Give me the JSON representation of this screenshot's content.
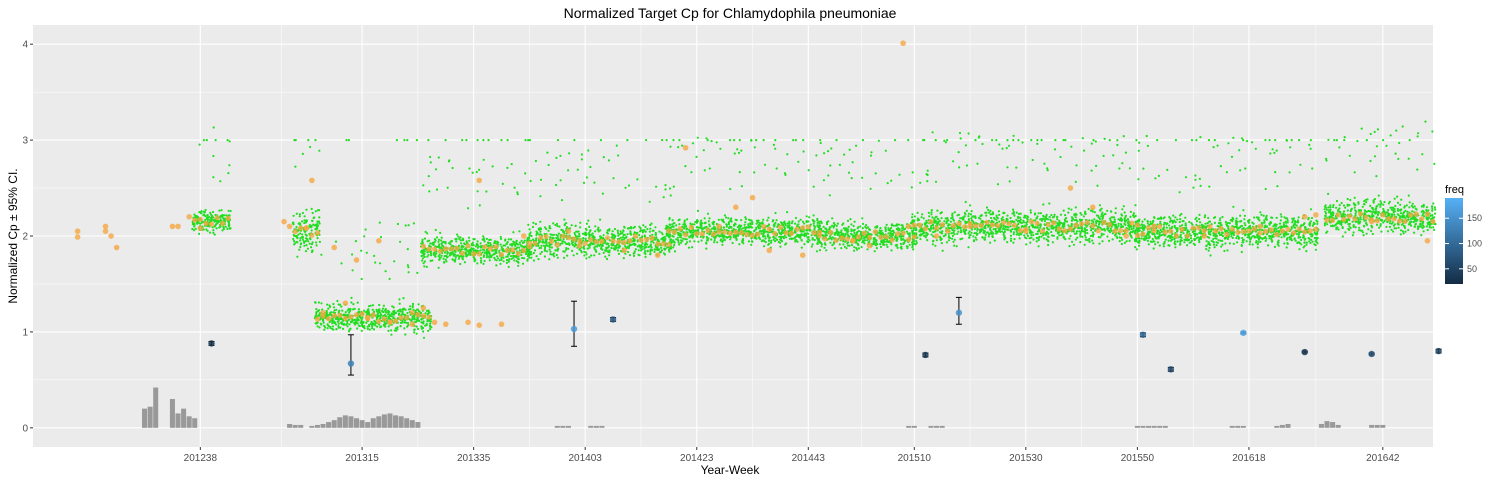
{
  "chart_data": {
    "type": "scatter",
    "title": "Normalized Target Cp for Chlamydophila pneumoniae",
    "xlabel": "Year-Week",
    "ylabel": "Normalized Cp ± 95% CI.",
    "ylim": [
      -0.2,
      4.2
    ],
    "xlim": [
      201208,
      201651
    ],
    "x_ticks": [
      "201238",
      "201315",
      "201335",
      "201403",
      "201423",
      "201443",
      "201510",
      "201530",
      "201550",
      "201618",
      "201642"
    ],
    "y_ticks": [
      0,
      1,
      2,
      3,
      4
    ],
    "grid": true,
    "colors": {
      "panel": "#ebebeb",
      "grid": "#ffffff",
      "green_points": "#22dd22",
      "orange_points": "#f5a742",
      "bars": "#999999",
      "error_bars": "#000000",
      "legend_low": "#132b43",
      "legend_high": "#56b1f7"
    },
    "green_segments": [
      {
        "x0": 201237,
        "x1": 201243,
        "mean": 2.15,
        "spread": 0.08
      },
      {
        "x0": 201303,
        "x1": 201307,
        "mean": 2.05,
        "spread": 0.15
      },
      {
        "x0": 201307,
        "x1": 201327,
        "mean": 1.15,
        "spread": 0.1
      },
      {
        "x0": 201326,
        "x1": 201345,
        "mean": 1.85,
        "spread": 0.1
      },
      {
        "x0": 201345,
        "x1": 201418,
        "mean": 1.95,
        "spread": 0.12
      },
      {
        "x0": 201418,
        "x1": 201445,
        "mean": 2.05,
        "spread": 0.1
      },
      {
        "x0": 201445,
        "x1": 201510,
        "mean": 2.0,
        "spread": 0.1
      },
      {
        "x0": 201510,
        "x1": 201550,
        "mean": 2.1,
        "spread": 0.12
      },
      {
        "x0": 201550,
        "x1": 201630,
        "mean": 2.05,
        "spread": 0.12
      },
      {
        "x0": 201632,
        "x1": 201651,
        "mean": 2.2,
        "spread": 0.12
      }
    ],
    "orange_points": [
      {
        "x": 201216,
        "y": 2.05
      },
      {
        "x": 201216,
        "y": 1.99
      },
      {
        "x": 201221,
        "y": 2.1
      },
      {
        "x": 201221,
        "y": 2.05
      },
      {
        "x": 201222,
        "y": 2.0
      },
      {
        "x": 201223,
        "y": 1.88
      },
      {
        "x": 201236,
        "y": 2.2
      },
      {
        "x": 201234,
        "y": 2.1
      },
      {
        "x": 201233,
        "y": 2.1
      },
      {
        "x": 201238,
        "y": 2.08
      },
      {
        "x": 201301,
        "y": 2.15
      },
      {
        "x": 201302,
        "y": 2.1
      },
      {
        "x": 201305,
        "y": 2.08
      },
      {
        "x": 201306,
        "y": 2.58
      },
      {
        "x": 201308,
        "y": 1.2
      },
      {
        "x": 201310,
        "y": 1.88
      },
      {
        "x": 201312,
        "y": 1.3
      },
      {
        "x": 201314,
        "y": 1.75
      },
      {
        "x": 201316,
        "y": 1.15
      },
      {
        "x": 201318,
        "y": 1.95
      },
      {
        "x": 201320,
        "y": 1.1
      },
      {
        "x": 201324,
        "y": 1.08
      },
      {
        "x": 201326,
        "y": 1.25
      },
      {
        "x": 201328,
        "y": 1.1
      },
      {
        "x": 201330,
        "y": 1.08
      },
      {
        "x": 201334,
        "y": 1.1
      },
      {
        "x": 201336,
        "y": 2.58
      },
      {
        "x": 201336,
        "y": 1.07
      },
      {
        "x": 201340,
        "y": 1.08
      },
      {
        "x": 201344,
        "y": 2.0
      },
      {
        "x": 201352,
        "y": 2.05
      },
      {
        "x": 201402,
        "y": 1.9
      },
      {
        "x": 201410,
        "y": 1.85
      },
      {
        "x": 201416,
        "y": 1.8
      },
      {
        "x": 201421,
        "y": 2.92
      },
      {
        "x": 201427,
        "y": 2.1
      },
      {
        "x": 201430,
        "y": 2.3
      },
      {
        "x": 201433,
        "y": 2.4
      },
      {
        "x": 201436,
        "y": 1.85
      },
      {
        "x": 201442,
        "y": 1.8
      },
      {
        "x": 201451,
        "y": 1.95
      },
      {
        "x": 201502,
        "y": 1.9
      },
      {
        "x": 201508,
        "y": 4.01
      },
      {
        "x": 201509,
        "y": 2.1
      },
      {
        "x": 201514,
        "y": 2.0
      },
      {
        "x": 201520,
        "y": 2.1
      },
      {
        "x": 201530,
        "y": 2.05
      },
      {
        "x": 201538,
        "y": 2.5
      },
      {
        "x": 201542,
        "y": 2.3
      },
      {
        "x": 201548,
        "y": 2.0
      },
      {
        "x": 201601,
        "y": 2.1
      },
      {
        "x": 201610,
        "y": 2.0
      },
      {
        "x": 201620,
        "y": 2.1
      },
      {
        "x": 201628,
        "y": 2.2
      },
      {
        "x": 201630,
        "y": 2.22
      },
      {
        "x": 201640,
        "y": 2.15
      },
      {
        "x": 201650,
        "y": 1.95
      }
    ],
    "ci_points": [
      {
        "x": 201240,
        "y": 0.88,
        "lo": 0.86,
        "hi": 0.9,
        "freq": 30
      },
      {
        "x": 201313,
        "y": 0.67,
        "lo": 0.55,
        "hi": 0.97,
        "freq": 130
      },
      {
        "x": 201401,
        "y": 1.03,
        "lo": 0.85,
        "hi": 1.32,
        "freq": 160
      },
      {
        "x": 201408,
        "y": 1.13,
        "lo": 1.11,
        "hi": 1.15,
        "freq": 80
      },
      {
        "x": 201512,
        "y": 0.76,
        "lo": 0.74,
        "hi": 0.78,
        "freq": 40
      },
      {
        "x": 201518,
        "y": 1.2,
        "lo": 1.08,
        "hi": 1.36,
        "freq": 150
      },
      {
        "x": 201551,
        "y": 0.97,
        "lo": 0.95,
        "hi": 0.99,
        "freq": 100
      },
      {
        "x": 201604,
        "y": 0.61,
        "lo": 0.59,
        "hi": 0.63,
        "freq": 60
      },
      {
        "x": 201617,
        "y": 0.99,
        "lo": 0.98,
        "hi": 1.0,
        "freq": 180
      },
      {
        "x": 201628,
        "y": 0.79,
        "lo": 0.78,
        "hi": 0.8,
        "freq": 40
      },
      {
        "x": 201640,
        "y": 0.77,
        "lo": 0.76,
        "hi": 0.78,
        "freq": 70
      },
      {
        "x": 201652,
        "y": 0.8,
        "lo": 0.78,
        "hi": 0.82,
        "freq": 50
      }
    ],
    "bars": [
      {
        "x": 201228,
        "h": 0.2
      },
      {
        "x": 201229,
        "h": 0.22
      },
      {
        "x": 201230,
        "h": 0.42
      },
      {
        "x": 201233,
        "h": 0.3
      },
      {
        "x": 201234,
        "h": 0.15
      },
      {
        "x": 201235,
        "h": 0.2
      },
      {
        "x": 201236,
        "h": 0.12
      },
      {
        "x": 201237,
        "h": 0.1
      },
      {
        "x": 201302,
        "h": 0.04
      },
      {
        "x": 201303,
        "h": 0.03
      },
      {
        "x": 201304,
        "h": 0.03
      },
      {
        "x": 201306,
        "h": 0.02
      },
      {
        "x": 201307,
        "h": 0.03
      },
      {
        "x": 201308,
        "h": 0.04
      },
      {
        "x": 201309,
        "h": 0.06
      },
      {
        "x": 201310,
        "h": 0.08
      },
      {
        "x": 201311,
        "h": 0.11
      },
      {
        "x": 201312,
        "h": 0.13
      },
      {
        "x": 201313,
        "h": 0.12
      },
      {
        "x": 201314,
        "h": 0.1
      },
      {
        "x": 201315,
        "h": 0.08
      },
      {
        "x": 201316,
        "h": 0.06
      },
      {
        "x": 201317,
        "h": 0.1
      },
      {
        "x": 201318,
        "h": 0.12
      },
      {
        "x": 201319,
        "h": 0.14
      },
      {
        "x": 201320,
        "h": 0.15
      },
      {
        "x": 201321,
        "h": 0.13
      },
      {
        "x": 201322,
        "h": 0.12
      },
      {
        "x": 201323,
        "h": 0.1
      },
      {
        "x": 201324,
        "h": 0.08
      },
      {
        "x": 201325,
        "h": 0.06
      },
      {
        "x": 201350,
        "h": 0.02
      },
      {
        "x": 201351,
        "h": 0.02
      },
      {
        "x": 201352,
        "h": 0.02
      },
      {
        "x": 201404,
        "h": 0.02
      },
      {
        "x": 201405,
        "h": 0.02
      },
      {
        "x": 201406,
        "h": 0.02
      },
      {
        "x": 201509,
        "h": 0.02
      },
      {
        "x": 201510,
        "h": 0.02
      },
      {
        "x": 201513,
        "h": 0.02
      },
      {
        "x": 201514,
        "h": 0.02
      },
      {
        "x": 201515,
        "h": 0.02
      },
      {
        "x": 201550,
        "h": 0.02
      },
      {
        "x": 201551,
        "h": 0.02
      },
      {
        "x": 201552,
        "h": 0.02
      },
      {
        "x": 201601,
        "h": 0.02
      },
      {
        "x": 201602,
        "h": 0.02
      },
      {
        "x": 201603,
        "h": 0.02
      },
      {
        "x": 201615,
        "h": 0.02
      },
      {
        "x": 201616,
        "h": 0.02
      },
      {
        "x": 201617,
        "h": 0.02
      },
      {
        "x": 201623,
        "h": 0.02
      },
      {
        "x": 201624,
        "h": 0.03
      },
      {
        "x": 201625,
        "h": 0.04
      },
      {
        "x": 201631,
        "h": 0.04
      },
      {
        "x": 201632,
        "h": 0.07
      },
      {
        "x": 201633,
        "h": 0.06
      },
      {
        "x": 201634,
        "h": 0.03
      },
      {
        "x": 201640,
        "h": 0.03
      },
      {
        "x": 201641,
        "h": 0.03
      },
      {
        "x": 201642,
        "h": 0.03
      }
    ],
    "legend": {
      "title": "freq",
      "ticks": [
        50,
        100,
        150
      ],
      "range": [
        20,
        190
      ]
    }
  }
}
